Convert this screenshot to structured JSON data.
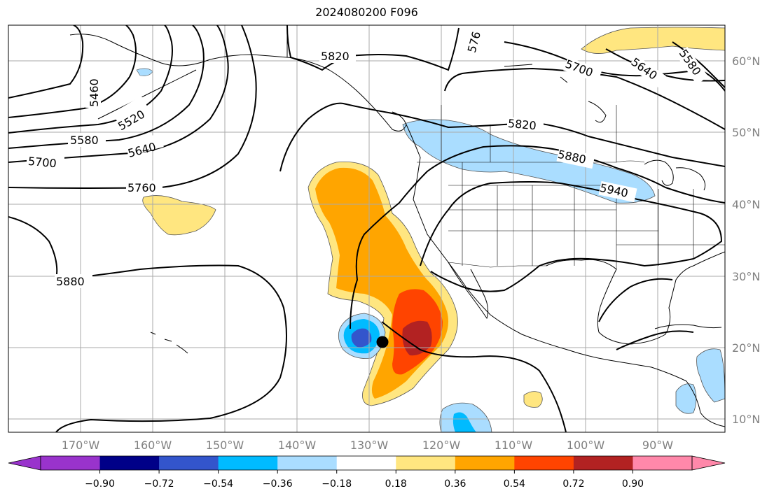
{
  "title": "2024080200 F096",
  "map": {
    "lon_labels": [
      "170°W",
      "160°W",
      "150°W",
      "140°W",
      "130°W",
      "120°W",
      "110°W",
      "100°W",
      "90°W"
    ],
    "lat_labels": [
      "60°N",
      "50°N",
      "40°N",
      "30°N",
      "20°N",
      "10°N"
    ],
    "contour_labels": [
      "5460",
      "5520",
      "5580",
      "5640",
      "5700",
      "5760",
      "5820",
      "5880",
      "5940"
    ],
    "marker": "storm-center-dot"
  },
  "colorbar": {
    "tick_labels": [
      "−0.90",
      "−0.72",
      "−0.54",
      "−0.36",
      "−0.18",
      "0.18",
      "0.36",
      "0.54",
      "0.72",
      "0.90"
    ],
    "colors": [
      "#9933cc",
      "#000088",
      "#3355cc",
      "#00bbff",
      "#aaddff",
      "#ffffff",
      "#ffe680",
      "#ffa500",
      "#ff4400",
      "#b22222",
      "#ff88aa"
    ]
  }
}
